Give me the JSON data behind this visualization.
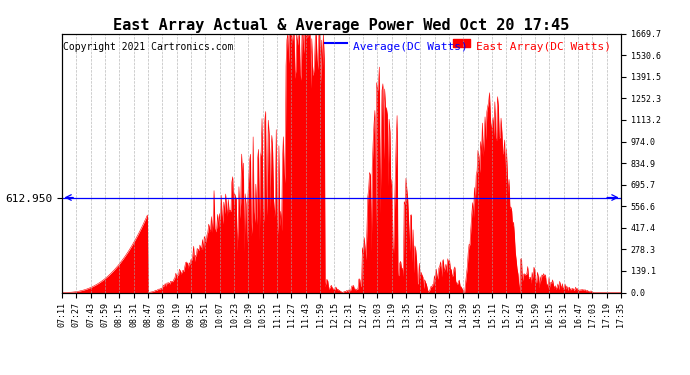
{
  "title": "East Array Actual & Average Power Wed Oct 20 17:45",
  "copyright": "Copyright 2021 Cartronics.com",
  "legend_avg": "Average(DC Watts)",
  "legend_east": "East Array(DC Watts)",
  "avg_value": 612.95,
  "y_left_label": "612.950",
  "y_right_ticks": [
    0.0,
    139.1,
    278.3,
    417.4,
    556.6,
    695.7,
    834.9,
    974.0,
    1113.2,
    1252.3,
    1391.5,
    1530.6,
    1669.7
  ],
  "x_tick_labels": [
    "07:11",
    "07:27",
    "07:43",
    "07:59",
    "08:15",
    "08:31",
    "08:47",
    "09:03",
    "09:19",
    "09:35",
    "09:51",
    "10:07",
    "10:23",
    "10:39",
    "10:55",
    "11:11",
    "11:27",
    "11:43",
    "11:59",
    "12:15",
    "12:31",
    "12:47",
    "13:03",
    "13:19",
    "13:35",
    "13:51",
    "14:07",
    "14:23",
    "14:39",
    "14:55",
    "15:11",
    "15:27",
    "15:43",
    "15:59",
    "16:15",
    "16:31",
    "16:47",
    "17:03",
    "17:19",
    "17:35"
  ],
  "avg_color": "#0000ff",
  "east_color": "#ff0000",
  "east_fill": "#ff0000",
  "grid_color": "#aaaaaa",
  "bg_color": "#ffffff",
  "title_fontsize": 11,
  "copyright_fontsize": 7,
  "legend_fontsize": 8,
  "tick_fontsize": 6,
  "ylabel_fontsize": 8,
  "ymax": 1669.7,
  "ymin": 0.0
}
